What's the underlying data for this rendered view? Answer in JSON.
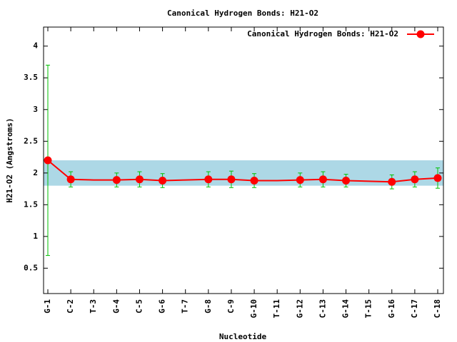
{
  "chart_data": {
    "type": "line",
    "title": "Canonical Hydrogen Bonds: H21-O2",
    "x_label": "Nucleotide",
    "y_label": "H21-O2 (Angstroms)",
    "categories": [
      "G-1",
      "C-2",
      "T-3",
      "G-4",
      "C-5",
      "G-6",
      "T-7",
      "G-8",
      "C-9",
      "G-10",
      "T-11",
      "G-12",
      "C-13",
      "G-14",
      "T-15",
      "G-16",
      "C-17",
      "C-18"
    ],
    "series": [
      {
        "name": "Canonical Hydrogen Bonds: H21-O2",
        "color": "#ff0000",
        "error_color": "#00c000",
        "values": [
          2.2,
          1.9,
          1.89,
          1.89,
          1.9,
          1.88,
          1.89,
          1.9,
          1.9,
          1.88,
          1.88,
          1.89,
          1.9,
          1.88,
          1.87,
          1.86,
          1.9,
          1.92
        ],
        "errors": [
          1.5,
          0.12,
          null,
          0.11,
          0.12,
          0.11,
          null,
          0.12,
          0.13,
          0.11,
          null,
          0.11,
          0.12,
          0.1,
          null,
          0.11,
          0.12,
          0.16
        ]
      }
    ],
    "band": [
      1.8,
      2.2
    ],
    "band_color": "#add8e6",
    "ylim": [
      0.1,
      4.3
    ],
    "yticks": [
      0.5,
      1,
      1.5,
      2,
      2.5,
      3,
      3.5,
      4
    ],
    "legend": "top-right"
  }
}
